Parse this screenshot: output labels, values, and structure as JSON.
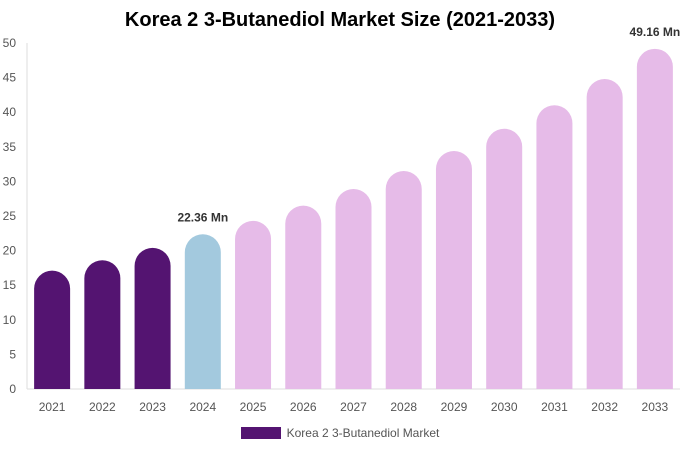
{
  "chart_data": {
    "type": "bar",
    "title": "Korea 2 3-Butanediol Market Size (2021-2033)",
    "categories": [
      "2021",
      "2022",
      "2023",
      "2024",
      "2025",
      "2026",
      "2027",
      "2028",
      "2029",
      "2030",
      "2031",
      "2032",
      "2033"
    ],
    "series": [
      {
        "name": "Korea 2 3-Butanediol Market",
        "values": [
          17.1,
          18.6,
          20.4,
          22.36,
          24.3,
          26.5,
          28.9,
          31.5,
          34.4,
          37.6,
          41.0,
          44.8,
          49.16
        ]
      }
    ],
    "bar_colors": [
      "#541471",
      "#541471",
      "#541471",
      "#a3c9de",
      "#e6bbe8",
      "#e6bbe8",
      "#e6bbe8",
      "#e6bbe8",
      "#e6bbe8",
      "#e6bbe8",
      "#e6bbe8",
      "#e6bbe8",
      "#e6bbe8"
    ],
    "data_labels": {
      "3": "22.36 Mn",
      "12": "49.16 Mn"
    },
    "ylim": [
      0,
      50
    ],
    "yticks": [
      0,
      5,
      10,
      15,
      20,
      25,
      30,
      35,
      40,
      45,
      50
    ],
    "grid": false,
    "legend_position": "bottom",
    "legend_color": "#541471"
  }
}
